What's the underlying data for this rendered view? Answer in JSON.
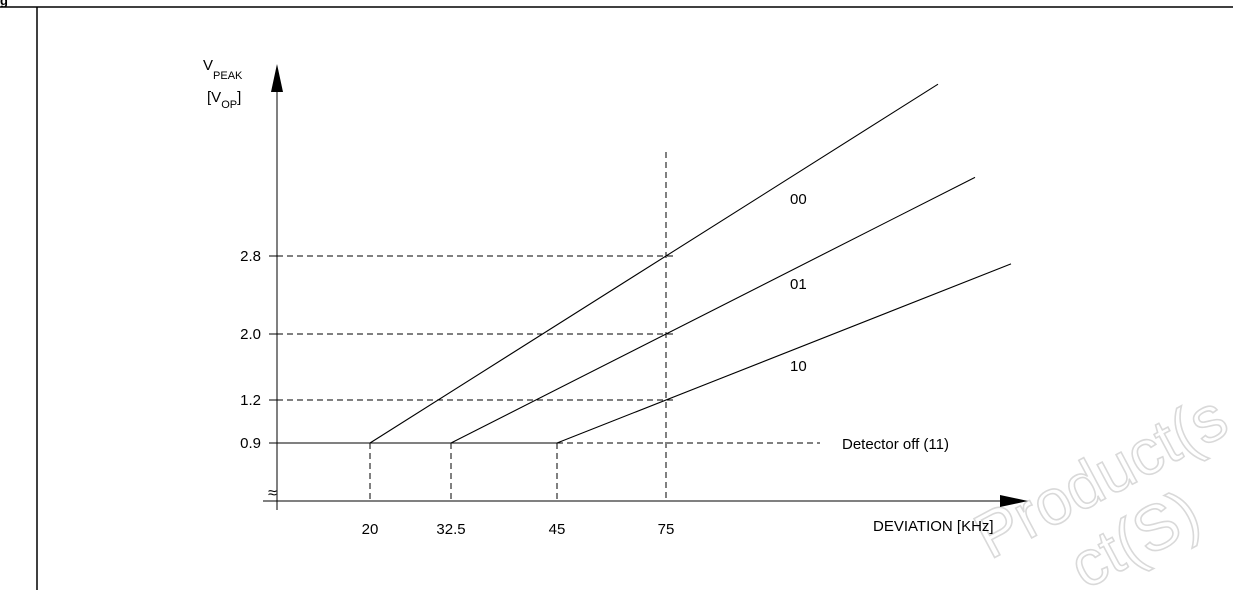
{
  "figure_label": "g",
  "watermark": [
    "Product(s",
    "ct(S)"
  ],
  "chart_data": {
    "type": "line",
    "x_axis": {
      "title": "DEVIATION [KHz]",
      "ticks": [
        20,
        32.5,
        45,
        75
      ],
      "tick_labels": [
        "20",
        "32.5",
        "45",
        "75"
      ]
    },
    "y_axis": {
      "title_main": "V",
      "title_sub": "PEAK",
      "unit_prefix": "[V",
      "unit_sub": "OP",
      "unit_suffix": "]",
      "ticks": [
        0.9,
        1.2,
        2.0,
        2.8
      ],
      "tick_labels": [
        "0.9",
        "1.2",
        "2.0",
        "2.8"
      ],
      "axis_break": "≈"
    },
    "series": [
      {
        "name": "00",
        "knee": 20,
        "floor": 0.9,
        "value_at_75": 2.8
      },
      {
        "name": "01",
        "knee": 32.5,
        "floor": 0.9,
        "value_at_75": 2.0
      },
      {
        "name": "10",
        "knee": 45,
        "floor": 0.9,
        "value_at_75": 1.2
      },
      {
        "name": "Detector off (11)",
        "constant": 0.9
      }
    ],
    "reference_x": 75,
    "grid": "dashed reference lines"
  }
}
